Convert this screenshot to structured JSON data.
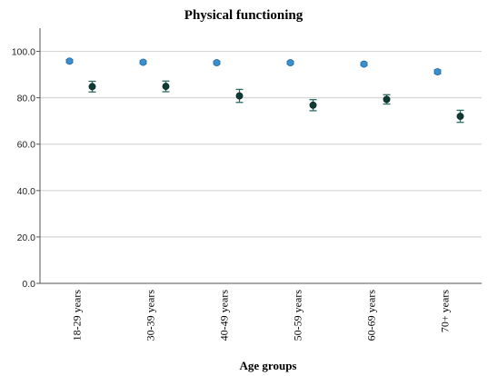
{
  "chart_data": {
    "type": "scatter",
    "title": "Physical functioning",
    "xlabel": "Age groups",
    "ylabel": "",
    "ylim": [
      0,
      110
    ],
    "yticks": [
      "0.0",
      "20.0",
      "40.0",
      "60.0",
      "80.0",
      "100.0"
    ],
    "grid": true,
    "categories": [
      "18-29 years",
      "30-39 years",
      "40-49 years",
      "50-59 years",
      "60-69 years",
      "70+ years"
    ],
    "series": [
      {
        "color": "#3a8fd1",
        "values": [
          95.8,
          95.3,
          95.1,
          95.1,
          94.5,
          91.2
        ],
        "error": [
          0.6,
          0.6,
          0.6,
          0.6,
          0.6,
          0.8
        ]
      },
      {
        "color": "#0f3b37",
        "values": [
          84.8,
          84.9,
          80.8,
          76.8,
          79.3,
          72.0
        ],
        "error": [
          2.3,
          2.3,
          2.8,
          2.4,
          2.0,
          2.6
        ]
      }
    ],
    "colors": {
      "axis": "#555555",
      "grid": "#d6d6d6",
      "errorbar": "#2d6b63"
    }
  }
}
